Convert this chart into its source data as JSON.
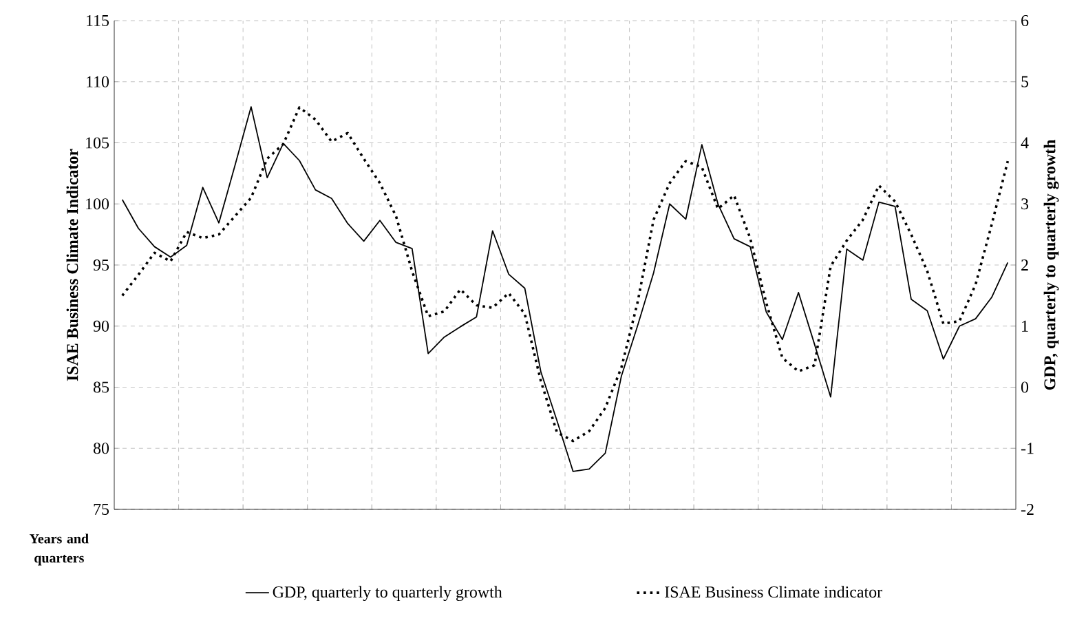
{
  "chart_data": {
    "type": "line",
    "xlabel": "Years and quarters",
    "ylabel": "ISAE Business Climate Indicator",
    "y2label": "GDP, quarterly to quarterly growth",
    "categories": [
      null,
      null,
      null,
      null,
      null,
      null,
      null,
      null,
      null,
      null,
      null,
      null,
      null,
      null,
      null,
      null,
      null,
      null,
      null,
      null,
      null,
      null,
      null,
      null,
      null,
      null,
      null,
      null,
      null,
      null,
      null,
      null,
      null,
      null,
      null,
      null,
      null,
      null,
      null,
      null,
      null,
      null,
      null,
      null,
      null,
      null,
      null,
      null,
      null,
      null,
      null,
      null,
      null,
      null,
      null,
      null
    ],
    "series": [
      {
        "name": "GDP, quarterly to quarterly growth",
        "color": "#000000",
        "axis": "y2",
        "line_style": "solid",
        "values": [
          3.07,
          2.6,
          2.3,
          2.13,
          2.32,
          3.27,
          2.69,
          3.63,
          4.59,
          3.43,
          3.99,
          3.71,
          3.23,
          3.09,
          2.68,
          2.39,
          2.73,
          2.37,
          2.27,
          0.55,
          0.82,
          0.99,
          1.15,
          2.56,
          1.85,
          1.62,
          0.25,
          -0.55,
          -1.38,
          -1.34,
          -1.08,
          0.18,
          1.0,
          1.87,
          3.0,
          2.75,
          3.97,
          3.0,
          2.43,
          2.3,
          1.23,
          0.78,
          1.55,
          0.7,
          -0.16,
          2.26,
          2.08,
          3.03,
          2.96,
          1.44,
          1.25,
          0.46,
          1.0,
          1.12,
          1.47,
          2.04
        ]
      },
      {
        "name": "ISAE Business Climate indicator",
        "color": "#000000",
        "line_style": "dotted",
        "values": [
          92.5,
          94.2,
          96.0,
          95.3,
          97.7,
          97.2,
          97.5,
          99.0,
          100.5,
          103.7,
          104.9,
          107.9,
          106.9,
          105.1,
          105.8,
          103.7,
          101.7,
          99.0,
          94.5,
          90.8,
          91.2,
          93.0,
          91.7,
          91.5,
          92.7,
          91.0,
          85.5,
          81.3,
          80.6,
          81.4,
          83.3,
          86.6,
          91.9,
          98.7,
          101.7,
          103.5,
          103.0,
          99.6,
          100.7,
          97.2,
          91.9,
          87.4,
          86.3,
          86.8,
          94.9,
          97.0,
          98.7,
          101.5,
          100.2,
          97.5,
          94.5,
          90.2,
          90.4,
          93.4,
          98.3,
          103.5
        ]
      }
    ],
    "ylim": [
      75,
      115
    ],
    "yticks": [
      75,
      80,
      85,
      90,
      95,
      100,
      105,
      110,
      115
    ],
    "y2lim": [
      -2,
      6
    ],
    "y2ticks": [
      -2,
      -1,
      0,
      1,
      2,
      3,
      4,
      5,
      6
    ],
    "grid": true,
    "legend": "bottom",
    "marker": "none"
  }
}
